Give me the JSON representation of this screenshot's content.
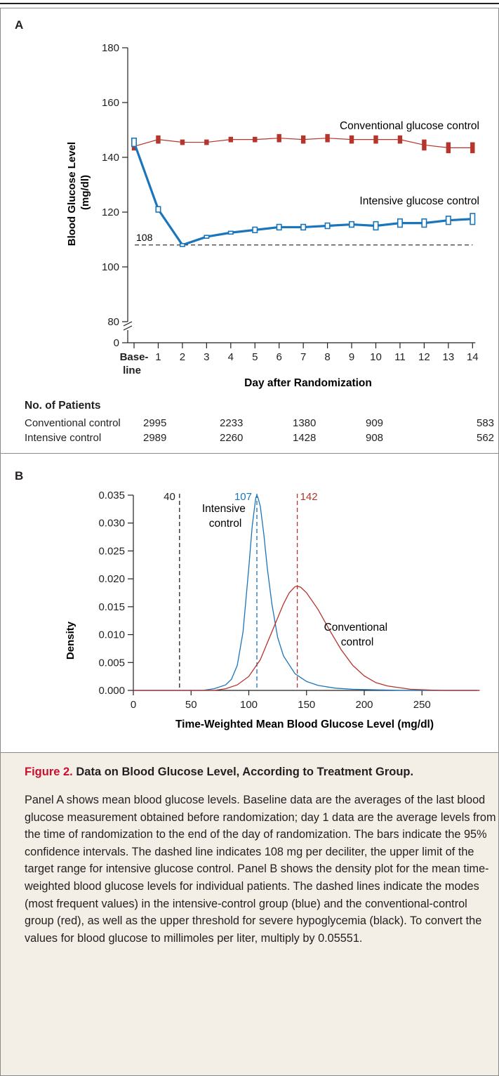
{
  "panel_a": {
    "letter": "A",
    "counts": {
      "heading": "No. of Patients",
      "rows": [
        {
          "label": "Conventional control",
          "values": [
            "2995",
            "2233",
            "1380",
            "909",
            "583"
          ]
        },
        {
          "label": "Intensive control",
          "values": [
            "2989",
            "2260",
            "1428",
            "908",
            "562"
          ]
        }
      ]
    }
  },
  "panel_b": {
    "letter": "B"
  },
  "caption": {
    "title_prefix": "Figure 2.",
    "title_text": "Data on Blood Glucose Level, According to Treatment Group.",
    "body": "Panel A shows mean blood glucose levels. Baseline data are the averages of the last blood glucose measurement obtained before randomization; day 1 data are the average levels from the time of randomization to the end of the day of randomization. The bars indicate the 95% confidence intervals. The dashed line indicates 108 mg per deciliter, the upper limit of the target range for intensive glucose control. Panel B shows the density plot for the mean time-weighted blood glucose levels for individual patients. The dashed lines indicate the modes (most frequent values) in the intensive-control group (blue) and the conventional-control group (red), as well as the upper threshold for severe hypoglycemia (black). To convert the values for blood glucose to millimoles per liter, multiply by 0.05551."
  },
  "colors": {
    "conventional": "#b5342c",
    "intensive": "#1b75bb",
    "threshold": "#231f20"
  },
  "chart_data": [
    {
      "type": "line",
      "title": "",
      "xlabel": "Day after Randomization",
      "ylabel": "Blood Glucose Level (mg/dl)",
      "ylabel_lines": [
        "Blood Glucose Level",
        "(mg/dl)"
      ],
      "x_ticks": [
        "Base-\nline",
        "1",
        "2",
        "3",
        "4",
        "5",
        "6",
        "7",
        "8",
        "9",
        "10",
        "11",
        "12",
        "13",
        "14"
      ],
      "x_tick_first_lines": [
        "Base-",
        "line"
      ],
      "y_ticks": [
        180,
        160,
        140,
        120,
        100,
        80,
        0
      ],
      "ylim": [
        80,
        180
      ],
      "axis_break": true,
      "grid": false,
      "reference_line": {
        "y": 108,
        "label": "108",
        "style": "dashed"
      },
      "series": [
        {
          "name": "Conventional glucose control",
          "color": "#b5342c",
          "values": [
            144,
            146.5,
            145.5,
            145.5,
            146.5,
            146.5,
            147,
            146.5,
            147,
            146.5,
            146.5,
            146.5,
            144.5,
            143.5,
            143.5
          ],
          "ci_low": [
            142.5,
            145,
            144.5,
            144.5,
            145.5,
            145.5,
            145.5,
            145,
            145.5,
            145,
            145,
            145,
            142.5,
            141.5,
            141.5
          ],
          "ci_high": [
            145.5,
            148,
            146.5,
            146.5,
            147.5,
            147.5,
            148.5,
            148,
            148.5,
            148,
            148,
            148,
            146.5,
            145.5,
            145.5
          ]
        },
        {
          "name": "Intensive glucose control",
          "color": "#1b75bb",
          "values": [
            145.5,
            121,
            108,
            111,
            112.5,
            113.5,
            114.5,
            114.5,
            115,
            115.5,
            115,
            116,
            116,
            117,
            117.5
          ],
          "ci_low": [
            144,
            120,
            107.5,
            110.5,
            112,
            112.5,
            113.5,
            113.5,
            114,
            114.5,
            113.5,
            114.5,
            114.5,
            115.5,
            115.5
          ],
          "ci_high": [
            147,
            122,
            108.5,
            111.5,
            113,
            114.5,
            115.5,
            115.5,
            116,
            116.5,
            116.5,
            117.5,
            117.5,
            118.5,
            119.5
          ]
        }
      ]
    },
    {
      "type": "line",
      "title": "",
      "xlabel": "Time-Weighted Mean Blood Glucose Level (mg/dl)",
      "ylabel": "Density",
      "x_ticks": [
        0,
        50,
        100,
        150,
        200,
        250
      ],
      "y_ticks": [
        "0.035",
        "0.030",
        "0.025",
        "0.020",
        "0.015",
        "0.010",
        "0.005",
        "0.000"
      ],
      "xlim": [
        0,
        300
      ],
      "ylim": [
        0,
        0.035
      ],
      "grid": false,
      "vlines": [
        {
          "x": 40,
          "label": "40",
          "color": "#231f20",
          "style": "dashed"
        },
        {
          "x": 107,
          "label": "107",
          "color": "#1b75bb",
          "style": "dashed"
        },
        {
          "x": 142,
          "label": "142",
          "color": "#b5342c",
          "style": "dashed"
        }
      ],
      "series": [
        {
          "name_lines": [
            "Intensive",
            "control"
          ],
          "color": "#1b75bb",
          "x": [
            0,
            60,
            70,
            80,
            85,
            90,
            95,
            100,
            103,
            106,
            107,
            108,
            110,
            113,
            116,
            120,
            125,
            130,
            140,
            150,
            160,
            175,
            190,
            210,
            235,
            300
          ],
          "values": [
            0,
            0,
            0.0003,
            0.001,
            0.002,
            0.0045,
            0.0105,
            0.022,
            0.0295,
            0.0345,
            0.035,
            0.0345,
            0.033,
            0.028,
            0.022,
            0.0155,
            0.0095,
            0.0062,
            0.003,
            0.0016,
            0.0009,
            0.0004,
            0.0002,
            0.0001,
            0,
            0
          ]
        },
        {
          "name_lines": [
            "Conventional",
            "control"
          ],
          "color": "#b5342c",
          "x": [
            0,
            70,
            80,
            90,
            100,
            110,
            120,
            130,
            135,
            140,
            142,
            145,
            150,
            160,
            170,
            180,
            190,
            200,
            210,
            220,
            240,
            260,
            270,
            300
          ],
          "values": [
            0,
            0,
            0.0003,
            0.001,
            0.0025,
            0.0055,
            0.0105,
            0.0155,
            0.0175,
            0.0186,
            0.0187,
            0.0185,
            0.0175,
            0.0145,
            0.0108,
            0.0073,
            0.0045,
            0.0026,
            0.0014,
            0.0008,
            0.0002,
            5e-05,
            0,
            0
          ]
        }
      ]
    }
  ]
}
